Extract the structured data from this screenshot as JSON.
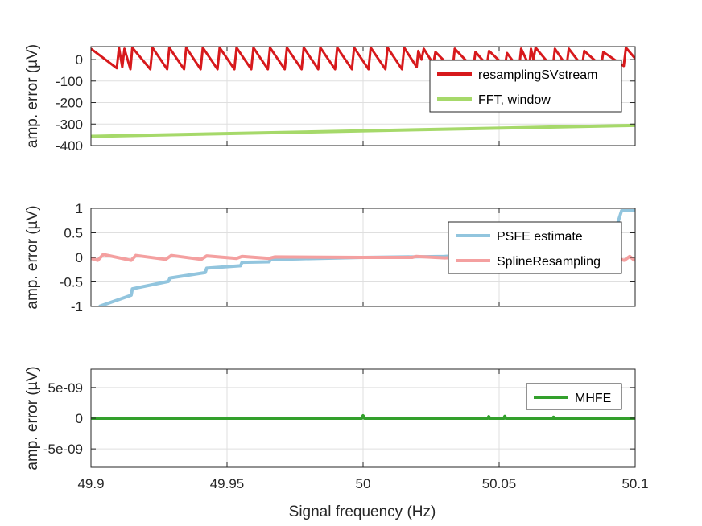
{
  "xlabel": "Signal frequency (Hz)",
  "chart_data": [
    {
      "type": "line",
      "xlabel": "",
      "ylabel": "amp. error (µV)",
      "xlim": [
        49.9,
        50.1
      ],
      "ylim": [
        -400,
        60
      ],
      "xticks": [
        49.9,
        49.95,
        50,
        50.05,
        50.1
      ],
      "yticks": [
        0,
        -100,
        -200,
        -300,
        -400
      ],
      "ytick_labels": [
        "0",
        "-100",
        "-200",
        "-300",
        "-400"
      ],
      "grid": true,
      "legend": "upper-right",
      "series": [
        {
          "name": "resamplingSVstream",
          "color": "#d7191c",
          "width": 3,
          "x": [
            49.9,
            49.9095,
            49.9103,
            49.9115,
            49.9123,
            49.9145,
            49.9152,
            49.9218,
            49.9226,
            49.928,
            49.9288,
            49.9342,
            49.935,
            49.9403,
            49.9411,
            49.9465,
            49.9473,
            49.9527,
            49.9535,
            49.9589,
            49.9597,
            49.965,
            49.9658,
            49.9712,
            49.972,
            49.9774,
            49.9782,
            49.9835,
            49.9843,
            49.9897,
            49.9905,
            49.9959,
            49.9967,
            50.002,
            50.0028,
            50.0082,
            50.009,
            50.0143,
            50.0151,
            50.0197,
            50.0203,
            50.0215,
            50.0223,
            50.0258,
            50.0266,
            50.0329,
            50.0337,
            50.0405,
            50.0413,
            50.0455,
            50.0463,
            50.0521,
            50.0529,
            50.0573,
            50.0581,
            50.0611,
            50.0617,
            50.0626,
            50.0634,
            50.0697,
            50.0705,
            50.0748,
            50.0756,
            50.0805,
            50.0813,
            50.0875,
            50.0883,
            50.0958,
            50.0966,
            50.1
          ],
          "y": [
            50,
            -40,
            55,
            -35,
            50,
            -45,
            55,
            -45,
            55,
            -45,
            55,
            -45,
            55,
            -45,
            55,
            -45,
            55,
            -45,
            55,
            -45,
            55,
            -45,
            55,
            -45,
            55,
            -45,
            55,
            -45,
            55,
            -45,
            55,
            -45,
            55,
            -45,
            55,
            -45,
            55,
            -45,
            55,
            -35,
            40,
            0,
            50,
            -20,
            35,
            -45,
            50,
            -40,
            35,
            -25,
            40,
            -30,
            30,
            -45,
            50,
            -30,
            50,
            0,
            55,
            -40,
            50,
            -30,
            50,
            -30,
            40,
            -30,
            35,
            -30,
            55,
            5
          ]
        },
        {
          "name": "FFT, window",
          "color": "#a6d96a",
          "width": 4,
          "x": [
            49.9,
            50.1
          ],
          "y": [
            -357,
            -306
          ]
        }
      ]
    },
    {
      "type": "line",
      "xlabel": "",
      "ylabel": "amp. error (µV)",
      "xlim": [
        49.9,
        50.1
      ],
      "ylim": [
        -1,
        1
      ],
      "xticks": [
        49.9,
        49.95,
        50,
        50.05,
        50.1
      ],
      "yticks": [
        1,
        0.5,
        0,
        -0.5,
        -1
      ],
      "ytick_labels": [
        "1",
        "0.5",
        "0",
        "-0.5",
        "-1"
      ],
      "grid": true,
      "legend": "right",
      "series": [
        {
          "name": "PSFE estimate",
          "color": "#92c5de",
          "width": 4,
          "x": [
            49.903,
            49.9148,
            49.9152,
            49.9285,
            49.929,
            49.942,
            49.9425,
            49.955,
            49.9555,
            49.9655,
            49.966,
            49.976,
            50,
            50.03,
            50.07,
            50.093,
            50.095,
            50.1
          ],
          "y": [
            -1.0,
            -0.77,
            -0.64,
            -0.49,
            -0.42,
            -0.31,
            -0.22,
            -0.17,
            -0.1,
            -0.09,
            -0.04,
            -0.03,
            0,
            0.02,
            0.15,
            0.6,
            0.95,
            0.95
          ]
        },
        {
          "name": "SplineResampling",
          "color": "#f4a0a0",
          "width": 4,
          "x": [
            49.9,
            49.9025,
            49.9045,
            49.9148,
            49.9165,
            49.9275,
            49.9295,
            49.9405,
            49.9425,
            49.9535,
            49.9555,
            49.9655,
            49.9675,
            50.0,
            50.018,
            50.0195,
            50.03,
            50.035,
            50.07,
            50.092,
            50.096,
            50.098,
            50.1
          ],
          "y": [
            -0.02,
            -0.06,
            0.06,
            -0.06,
            0.04,
            -0.04,
            0.04,
            -0.04,
            0.03,
            -0.02,
            0.02,
            -0.02,
            0.01,
            0.0,
            0.0,
            0.02,
            -0.01,
            0.0,
            0.01,
            0.0,
            -0.06,
            0.02,
            -0.07
          ]
        }
      ]
    },
    {
      "type": "line",
      "xlabel": "",
      "ylabel": "amp. error (µV)",
      "xlim": [
        49.9,
        50.1
      ],
      "ylim": [
        -8e-09,
        8e-09
      ],
      "xticks": [
        49.9,
        49.95,
        50,
        50.05,
        50.1
      ],
      "xtick_labels": [
        "49.9",
        "49.95",
        "50",
        "50.05",
        "50.1"
      ],
      "yticks": [
        5e-09,
        0,
        -5e-09
      ],
      "ytick_labels": [
        "5e-09",
        "0",
        "-5e-09"
      ],
      "grid": true,
      "legend": "upper-right",
      "series": [
        {
          "name": "MHFE",
          "color": "#33a02c",
          "width": 4,
          "x": [
            49.9,
            49.9995,
            50.0,
            50.0005,
            50.0459,
            50.0462,
            50.0465,
            50.0518,
            50.0521,
            50.0524,
            50.0698,
            50.07,
            50.0702,
            50.1
          ],
          "y": [
            0,
            0,
            4e-10,
            0,
            0,
            2.5e-10,
            0,
            0,
            3e-10,
            0,
            0,
            1.5e-10,
            0,
            0
          ]
        }
      ]
    }
  ]
}
